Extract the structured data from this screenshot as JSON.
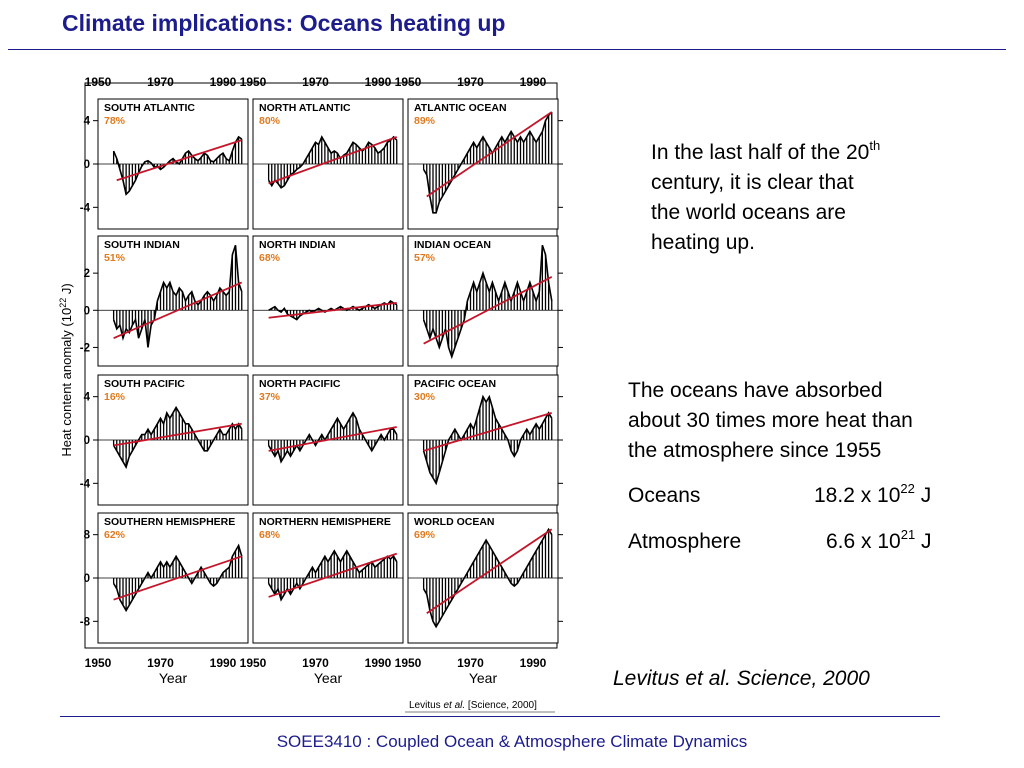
{
  "slide": {
    "title": "Climate implications: Oceans heating up",
    "footer": "SOEE3410 : Coupled Ocean & Atmosphere Climate Dynamics"
  },
  "text": {
    "p1_line1_pre": "In the last half of the 20",
    "p1_line1_sup": "th",
    "p1_line2": "century, it is clear that",
    "p1_line3": "the world oceans are",
    "p1_line4": "heating up.",
    "p2_line1": "The oceans have absorbed",
    "p2_line2": "about 30 times more heat than",
    "p2_line3": "the atmosphere since 1955",
    "oceans_label": "Oceans",
    "oceans_value_pre": "18.2 x 10",
    "oceans_value_sup": "22",
    "oceans_value_unit": " J",
    "atmos_label": "Atmosphere",
    "atmos_value_pre": "6.6 x 10",
    "atmos_value_sup": "21",
    "atmos_value_unit": " J",
    "citation": "Levitus et al. Science, 2000"
  },
  "chart_data": {
    "type": "line",
    "ylabel_pre": "Heat content anomaly (10",
    "ylabel_sup": "22",
    "ylabel_post": " J)",
    "xlabel": "Year",
    "x_ticks": [
      1950,
      1970,
      1990
    ],
    "xlim": [
      1950,
      1998
    ],
    "credit_pre": "Levitus ",
    "credit_etal": "et al.",
    "credit_post": " [Science, 2000]",
    "colors": {
      "trend": "#c4162a",
      "percent": "#e07a1f",
      "series": "#000000"
    },
    "rows": [
      {
        "yticks": [
          -4,
          0,
          4
        ],
        "ylim": [
          -6,
          6
        ]
      },
      {
        "yticks": [
          -2,
          0,
          2
        ],
        "ylim": [
          -3,
          4
        ]
      },
      {
        "yticks": [
          -4,
          0,
          4
        ],
        "ylim": [
          -6,
          6
        ]
      },
      {
        "yticks": [
          -8,
          0,
          8
        ],
        "ylim": [
          -12,
          12
        ]
      }
    ],
    "panels": [
      {
        "name": "SOUTH ATLANTIC",
        "percent": "78%",
        "values": [
          1.2,
          0.5,
          -0.5,
          -1.5,
          -2.8,
          -2.5,
          -2.0,
          -1.5,
          -0.8,
          -0.2,
          0.2,
          0.3,
          0.1,
          -0.3,
          -0.2,
          -0.5,
          -0.3,
          0.0,
          0.3,
          0.5,
          0.2,
          0.0,
          0.5,
          1.0,
          1.2,
          0.8,
          0.5,
          0.3,
          0.6,
          1.0,
          0.8,
          0.3,
          0.2,
          0.5,
          0.8,
          1.0,
          0.5,
          0.3,
          1.2,
          2.0,
          2.5,
          2.3
        ],
        "trend": [
          [
            1956,
            -1.5
          ],
          [
            1996,
            2.2
          ]
        ]
      },
      {
        "name": "NORTH ATLANTIC",
        "percent": "80%",
        "values": [
          -1.5,
          -2.0,
          -1.5,
          -1.8,
          -2.2,
          -2.0,
          -1.5,
          -1.0,
          -0.8,
          -0.5,
          -0.3,
          0.0,
          0.5,
          1.0,
          1.5,
          2.0,
          1.8,
          2.5,
          2.0,
          1.5,
          1.0,
          1.2,
          1.0,
          0.5,
          0.8,
          1.0,
          1.5,
          2.0,
          1.8,
          1.5,
          1.2,
          1.5,
          2.0,
          1.8,
          1.5,
          1.0,
          1.2,
          1.5,
          2.0,
          2.2,
          2.5,
          2.2
        ],
        "trend": [
          [
            1955,
            -1.8
          ],
          [
            1996,
            2.5
          ]
        ]
      },
      {
        "name": "ATLANTIC OCEAN",
        "percent": "89%",
        "values": [
          -0.5,
          -1.0,
          -3.0,
          -4.5,
          -4.5,
          -3.5,
          -3.0,
          -2.5,
          -2.0,
          -1.5,
          -1.0,
          -0.5,
          0.0,
          0.5,
          1.0,
          1.5,
          2.0,
          1.5,
          2.0,
          2.5,
          2.0,
          1.5,
          1.0,
          1.5,
          2.0,
          2.5,
          2.0,
          2.5,
          3.0,
          2.5,
          2.0,
          2.5,
          2.0,
          2.5,
          3.0,
          2.5,
          2.0,
          2.5,
          3.0,
          4.0,
          4.5,
          4.8
        ],
        "trend": [
          [
            1956,
            -3.0
          ],
          [
            1996,
            4.8
          ]
        ]
      },
      {
        "name": "SOUTH INDIAN",
        "percent": "51%",
        "values": [
          -0.5,
          -1.0,
          -0.8,
          -1.5,
          -1.0,
          -1.2,
          -0.8,
          -0.5,
          -1.5,
          -1.0,
          -0.5,
          -2.0,
          -0.8,
          -0.5,
          0.5,
          1.0,
          1.5,
          1.2,
          1.5,
          1.0,
          0.8,
          1.2,
          1.0,
          0.5,
          0.8,
          1.0,
          0.5,
          0.3,
          0.5,
          0.8,
          1.0,
          0.8,
          0.5,
          0.8,
          1.2,
          1.0,
          0.8,
          1.0,
          3.0,
          3.5,
          1.5,
          1.0
        ],
        "trend": [
          [
            1955,
            -1.5
          ],
          [
            1996,
            1.5
          ]
        ]
      },
      {
        "name": "NORTH INDIAN",
        "percent": "68%",
        "values": [
          0.0,
          0.1,
          0.2,
          0.0,
          -0.1,
          0.1,
          -0.2,
          -0.3,
          -0.4,
          -0.5,
          -0.3,
          -0.2,
          -0.1,
          0.0,
          -0.1,
          0.0,
          0.1,
          0.0,
          -0.1,
          0.0,
          0.1,
          0.0,
          0.1,
          0.2,
          0.1,
          0.0,
          0.1,
          0.2,
          0.1,
          0.0,
          0.1,
          0.2,
          0.3,
          0.2,
          0.1,
          0.2,
          0.3,
          0.4,
          0.3,
          0.5,
          0.4,
          0.3
        ],
        "trend": [
          [
            1955,
            -0.4
          ],
          [
            1996,
            0.4
          ]
        ]
      },
      {
        "name": "INDIAN OCEAN",
        "percent": "57%",
        "values": [
          -0.5,
          -1.0,
          -1.5,
          -1.0,
          -1.5,
          -2.0,
          -1.5,
          -1.0,
          -2.0,
          -2.5,
          -2.0,
          -1.5,
          -1.0,
          -0.5,
          0.5,
          1.0,
          1.5,
          1.0,
          1.5,
          2.0,
          1.5,
          1.0,
          1.5,
          1.0,
          0.5,
          1.0,
          1.5,
          1.0,
          0.5,
          1.0,
          1.5,
          1.0,
          0.5,
          1.0,
          1.5,
          1.0,
          0.5,
          1.0,
          3.5,
          3.0,
          1.5,
          0.5
        ],
        "trend": [
          [
            1955,
            -1.8
          ],
          [
            1996,
            1.8
          ]
        ]
      },
      {
        "name": "SOUTH PACIFIC",
        "percent": "16%",
        "values": [
          -0.5,
          -1.0,
          -1.5,
          -2.0,
          -2.5,
          -1.5,
          -1.0,
          -0.5,
          0.0,
          0.5,
          0.5,
          1.0,
          0.5,
          1.0,
          1.5,
          2.0,
          1.5,
          2.5,
          2.0,
          2.5,
          3.0,
          2.5,
          2.0,
          1.5,
          1.5,
          1.0,
          0.5,
          0.0,
          -0.5,
          -1.0,
          -1.0,
          -0.5,
          0.0,
          0.5,
          1.0,
          0.5,
          0.5,
          1.0,
          1.5,
          1.0,
          1.5,
          1.0
        ],
        "trend": [
          [
            1955,
            -0.5
          ],
          [
            1996,
            1.5
          ]
        ]
      },
      {
        "name": "NORTH PACIFIC",
        "percent": "37%",
        "values": [
          -0.5,
          -1.0,
          -1.5,
          -1.0,
          -2.0,
          -1.5,
          -1.0,
          -1.5,
          -1.0,
          -0.5,
          -1.0,
          -0.5,
          0.0,
          0.5,
          0.0,
          -0.5,
          0.0,
          0.5,
          0.0,
          0.5,
          1.0,
          1.5,
          2.0,
          1.5,
          1.0,
          1.5,
          2.0,
          2.5,
          2.0,
          1.0,
          0.5,
          0.0,
          -0.5,
          -1.0,
          -0.5,
          0.0,
          0.5,
          0.0,
          0.5,
          1.0,
          1.0,
          0.5
        ],
        "trend": [
          [
            1955,
            -1.0
          ],
          [
            1996,
            1.2
          ]
        ]
      },
      {
        "name": "PACIFIC OCEAN",
        "percent": "30%",
        "values": [
          -1.0,
          -2.0,
          -3.0,
          -3.5,
          -4.0,
          -3.0,
          -2.0,
          -1.0,
          0.0,
          0.5,
          1.0,
          0.5,
          0.0,
          0.5,
          1.0,
          1.5,
          1.0,
          2.0,
          3.0,
          4.0,
          3.5,
          4.0,
          3.0,
          2.0,
          1.5,
          1.0,
          0.5,
          0.0,
          -1.0,
          -1.5,
          -1.0,
          0.0,
          0.5,
          1.0,
          0.5,
          1.0,
          1.5,
          1.0,
          1.5,
          2.0,
          2.5,
          2.0
        ],
        "trend": [
          [
            1955,
            -1.0
          ],
          [
            1996,
            2.5
          ]
        ]
      },
      {
        "name": "SOUTHERN HEMISPHERE",
        "percent": "62%",
        "values": [
          -1.0,
          -2.0,
          -4.0,
          -5.0,
          -6.0,
          -5.0,
          -4.0,
          -3.0,
          -2.0,
          -1.0,
          0.0,
          1.0,
          0.0,
          1.0,
          2.0,
          3.0,
          2.0,
          3.0,
          2.0,
          3.0,
          4.0,
          3.0,
          2.0,
          1.0,
          0.0,
          -1.0,
          0.0,
          1.0,
          2.0,
          1.0,
          0.0,
          -1.0,
          -1.5,
          -1.0,
          0.0,
          1.0,
          1.5,
          2.0,
          4.0,
          5.0,
          6.0,
          4.0
        ],
        "trend": [
          [
            1955,
            -4.0
          ],
          [
            1996,
            4.0
          ]
        ]
      },
      {
        "name": "NORTHERN HEMISPHERE",
        "percent": "68%",
        "values": [
          -1.0,
          -2.0,
          -3.0,
          -2.0,
          -4.0,
          -3.0,
          -2.0,
          -3.0,
          -2.0,
          -1.0,
          -2.0,
          -1.0,
          0.0,
          1.0,
          2.0,
          1.0,
          2.0,
          3.0,
          4.0,
          3.0,
          4.0,
          5.0,
          4.0,
          3.0,
          4.0,
          5.0,
          4.0,
          3.0,
          2.0,
          1.0,
          1.5,
          2.0,
          2.5,
          3.0,
          2.0,
          2.5,
          3.0,
          3.5,
          4.0,
          3.5,
          4.0,
          3.0
        ],
        "trend": [
          [
            1955,
            -3.5
          ],
          [
            1996,
            4.5
          ]
        ]
      },
      {
        "name": "WORLD OCEAN",
        "percent": "69%",
        "values": [
          -2.0,
          -3.0,
          -6.0,
          -8.0,
          -9.0,
          -8.0,
          -7.0,
          -6.0,
          -5.0,
          -4.0,
          -3.0,
          -2.0,
          -1.0,
          0.0,
          1.0,
          2.0,
          3.0,
          4.0,
          5.0,
          6.0,
          7.0,
          6.0,
          5.0,
          4.0,
          3.0,
          2.0,
          1.0,
          0.0,
          -1.0,
          -1.5,
          -1.0,
          0.0,
          1.0,
          2.0,
          3.0,
          4.0,
          5.0,
          6.0,
          7.0,
          8.0,
          9.0,
          8.0
        ],
        "trend": [
          [
            1956,
            -6.5
          ],
          [
            1996,
            9.0
          ]
        ]
      }
    ]
  }
}
